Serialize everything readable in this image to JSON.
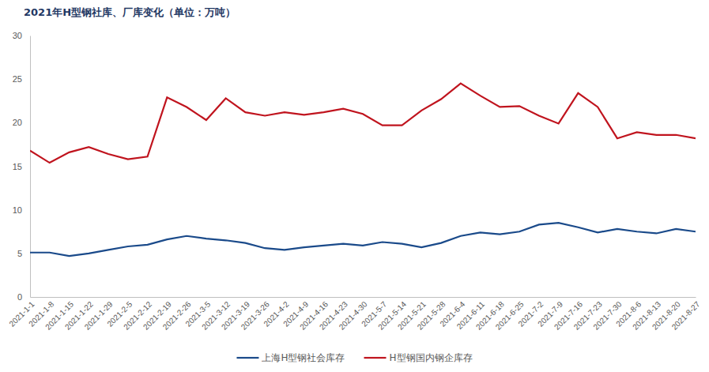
{
  "chart_data": {
    "type": "line",
    "title": "2021年H型钢社库、厂库变化（单位：万吨）",
    "categories": [
      "2021-1-1",
      "2021-1-8",
      "2021-1-15",
      "2021-1-22",
      "2021-1-29",
      "2021-2-5",
      "2021-2-12",
      "2021-2-19",
      "2021-2-26",
      "2021-3-5",
      "2021-3-12",
      "2021-3-19",
      "2021-3-26",
      "2021-4-2",
      "2021-4-9",
      "2021-4-16",
      "2021-4-23",
      "2021-4-30",
      "2021-5-7",
      "2021-5-14",
      "2021-5-21",
      "2021-5-28",
      "2021-6-4",
      "2021-6-11",
      "2021-6-18",
      "2021-6-25",
      "2021-7-2",
      "2021-7-9",
      "2021-7-16",
      "2021-7-23",
      "2021-7-30",
      "2021-8-6",
      "2021-8-13",
      "2021-8-20",
      "2021-8-27"
    ],
    "series": [
      {
        "name": "上海H型钢社会库存",
        "color": "#1a4a8a",
        "values": [
          5.1,
          5.1,
          4.7,
          5.0,
          5.4,
          5.8,
          6.0,
          6.6,
          7.0,
          6.7,
          6.5,
          6.2,
          5.6,
          5.4,
          5.7,
          5.9,
          6.1,
          5.9,
          6.3,
          6.1,
          5.7,
          6.2,
          7.0,
          7.4,
          7.2,
          7.5,
          8.3,
          8.5,
          8.0,
          7.4,
          7.8,
          7.5,
          7.3,
          7.8,
          7.5
        ]
      },
      {
        "name": "H型钢国内钢企库存",
        "color": "#c0141e",
        "values": [
          16.8,
          15.4,
          16.6,
          17.2,
          16.4,
          15.8,
          16.1,
          22.9,
          21.8,
          20.3,
          22.8,
          21.2,
          20.8,
          21.2,
          20.9,
          21.2,
          21.6,
          21.0,
          19.7,
          19.7,
          21.4,
          22.7,
          24.5,
          23.1,
          21.8,
          21.9,
          20.8,
          19.9,
          23.4,
          21.8,
          18.2,
          18.9,
          18.6,
          18.6,
          18.2
        ]
      }
    ],
    "ylim": [
      0,
      30
    ],
    "yticks": [
      0,
      5,
      10,
      15,
      20,
      25,
      30
    ],
    "grid": false,
    "legend": "bottom"
  }
}
